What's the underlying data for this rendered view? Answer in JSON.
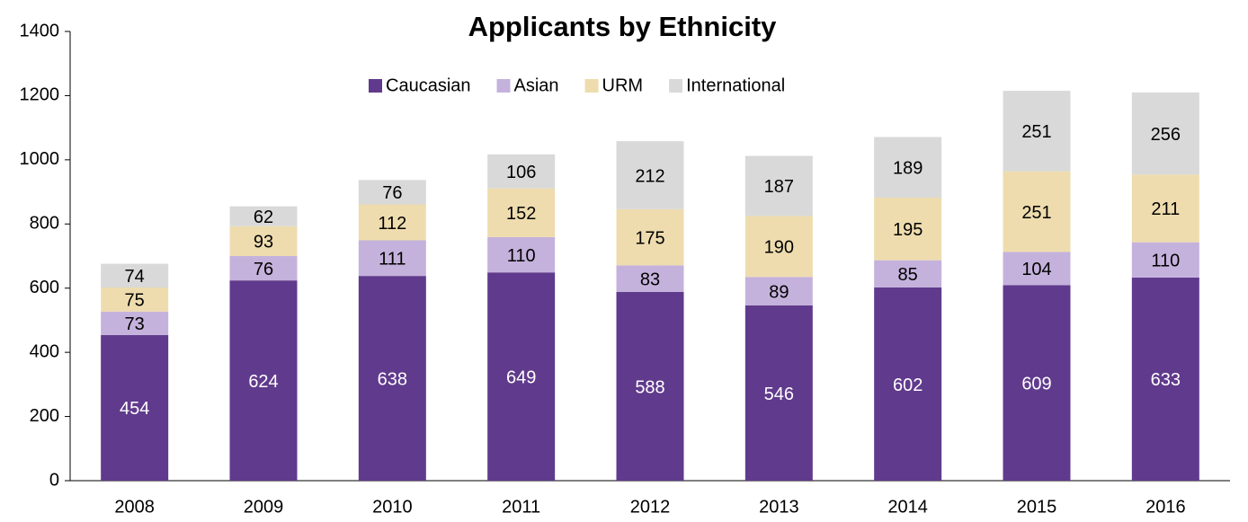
{
  "chart_data": {
    "type": "stacked_bar",
    "title": "Applicants by Ethnicity",
    "categories": [
      "2008",
      "2009",
      "2010",
      "2011",
      "2012",
      "2013",
      "2014",
      "2015",
      "2016"
    ],
    "series": [
      {
        "name": "Caucasian",
        "color": "#603a8c",
        "label_color": "#ffffff",
        "values": [
          454,
          624,
          638,
          649,
          588,
          546,
          602,
          609,
          633
        ]
      },
      {
        "name": "Asian",
        "color": "#c4b2dc",
        "label_color": "#000000",
        "values": [
          73,
          76,
          111,
          110,
          83,
          89,
          85,
          104,
          110
        ]
      },
      {
        "name": "URM",
        "color": "#eedcae",
        "label_color": "#000000",
        "values": [
          75,
          93,
          112,
          152,
          175,
          190,
          195,
          251,
          211
        ]
      },
      {
        "name": "International",
        "color": "#d9d9d9",
        "label_color": "#000000",
        "values": [
          74,
          62,
          76,
          106,
          212,
          187,
          189,
          251,
          256
        ]
      }
    ],
    "ylim": [
      0,
      1400
    ],
    "yticks": [
      0,
      200,
      400,
      600,
      800,
      1000,
      1200,
      1400
    ],
    "grid": false,
    "legend": "top"
  }
}
